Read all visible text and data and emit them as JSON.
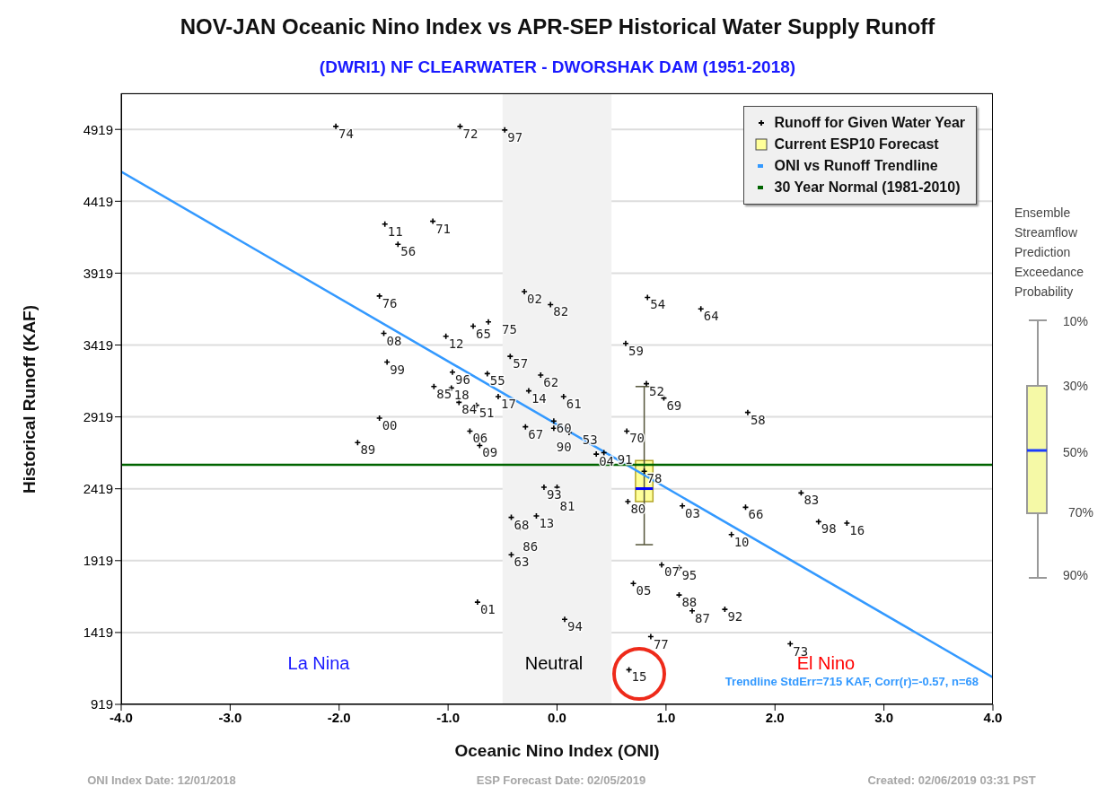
{
  "chart_data": {
    "type": "scatter",
    "title": "NOV-JAN Oceanic Nino Index vs APR-SEP Historical Water Supply Runoff",
    "subtitle": "(DWRI1) NF CLEARWATER - DWORSHAK DAM (1951-2018)",
    "xlabel": "Oceanic Nino Index (ONI)",
    "ylabel": "Historical Runoff (KAF)",
    "xlim": [
      -4,
      4
    ],
    "xticks": [
      {
        "value": -4,
        "label": "-4.0"
      },
      {
        "value": -3,
        "label": "-3.0"
      },
      {
        "value": -2,
        "label": "-2.0"
      },
      {
        "value": -1,
        "label": "-1.0"
      },
      {
        "value": 0,
        "label": "0.0"
      },
      {
        "value": 1,
        "label": "1.0"
      },
      {
        "value": 2,
        "label": "2.0"
      },
      {
        "value": 3,
        "label": "3.0"
      },
      {
        "value": 4,
        "label": "4.0"
      }
    ],
    "ylim": [
      919,
      5170
    ],
    "yticks": [
      919,
      1419,
      1919,
      2419,
      2919,
      3419,
      3919,
      4419,
      4919
    ],
    "grid": "y",
    "legend": "top right",
    "bands": [
      {
        "axis": "x",
        "from": -0.5,
        "to": 0.5,
        "color": "#f2f2f2"
      }
    ],
    "series": [
      {
        "name": "Runoff for Given Water Year",
        "color": "#000000",
        "marker": "cross",
        "x": [
          -2.03,
          -0.89,
          -0.48,
          -1.58,
          -1.14,
          -1.46,
          -1.63,
          -0.3,
          -0.06,
          0.83,
          -1.59,
          -1.02,
          -0.77,
          -0.63,
          0.63,
          -1.56,
          -0.43,
          -0.96,
          -0.64,
          -0.15,
          -1.13,
          -0.97,
          -0.54,
          -0.26,
          0.06,
          0.82,
          0.98,
          -0.9,
          -0.74,
          -1.63,
          -1.83,
          -0.8,
          -0.71,
          -0.29,
          -0.03,
          -0.03,
          0.11,
          0.36,
          0.43,
          0.64,
          0.8,
          -0.12,
          0.0,
          0.65,
          -0.42,
          -0.19,
          -0.34,
          -0.42,
          -0.73,
          0.07,
          0.86,
          0.66,
          0.7,
          0.96,
          1.32,
          1.75,
          2.24,
          1.15,
          1.73,
          2.4,
          2.66,
          1.6,
          1.12,
          1.12,
          1.24,
          1.54,
          2.14
        ],
        "values": [
          4940,
          4940,
          4915,
          4260,
          4280,
          4120,
          3760,
          3790,
          3700,
          3750,
          3500,
          3480,
          3550,
          3580,
          3430,
          3300,
          3340,
          3230,
          3220,
          3210,
          3130,
          3120,
          3060,
          3100,
          3060,
          3150,
          3050,
          3020,
          3000,
          2910,
          2740,
          2820,
          2720,
          2850,
          2890,
          2840,
          2810,
          2660,
          2670,
          2820,
          2540,
          2430,
          2430,
          2330,
          2220,
          2230,
          2150,
          1960,
          1630,
          1510,
          1390,
          1160,
          1760,
          1890,
          3670,
          2950,
          2390,
          2300,
          2290,
          2190,
          2180,
          2100,
          1870,
          1680,
          1570,
          1580,
          1340
        ]
      },
      {
        "type": "box",
        "name": "Current ESP10 Forecast",
        "color": "#ffff99",
        "x": [
          0.8
        ],
        "boxes": [
          {
            "low": 2030,
            "q1": 2330,
            "median": 2420,
            "q3": 2615,
            "high": 3130
          }
        ]
      },
      {
        "type": "line",
        "name": "ONI vs Runoff Trendline",
        "color": "#3399ff",
        "x": [
          -4,
          4
        ],
        "values": [
          4625,
          1107
        ]
      },
      {
        "type": "line",
        "name": "30 Year Normal (1981-2010)",
        "color": "#006400",
        "x": [
          -4,
          4
        ],
        "values": [
          2585,
          2585
        ]
      }
    ],
    "annotations": [
      "La Nina",
      "Neutral",
      "El Nino",
      "Trendline StdErr=715 KAF, Corr(r)=-0.57, n=68",
      "ONI Index Date: 12/01/2018",
      "ESP Forecast Date: 02/05/2019",
      "Created: 02/06/2019 03:31 PST",
      "Ensemble Streamflow Prediction Exceedance Probability",
      "10%",
      "30%",
      "50%",
      "70%",
      "90%",
      {
        "text": "74",
        "x": -2.03,
        "y": 4940
      },
      {
        "text": "72",
        "x": -0.89,
        "y": 4940
      },
      {
        "text": "97",
        "x": -0.48,
        "y": 4915
      },
      {
        "text": "11",
        "x": -1.58,
        "y": 4260
      },
      {
        "text": "71",
        "x": -1.14,
        "y": 4280
      },
      {
        "text": "56",
        "x": -1.46,
        "y": 4120
      },
      {
        "text": "76",
        "x": -1.63,
        "y": 3760
      },
      {
        "text": "02",
        "x": -0.3,
        "y": 3790
      },
      {
        "text": "82",
        "x": -0.06,
        "y": 3700
      },
      {
        "text": "54",
        "x": 0.83,
        "y": 3750
      },
      {
        "text": "08",
        "x": -1.59,
        "y": 3500
      },
      {
        "text": "12",
        "x": -1.02,
        "y": 3480
      },
      {
        "text": "65",
        "x": -0.77,
        "y": 3550
      },
      {
        "text": "75",
        "x": -0.63,
        "y": 3580
      },
      {
        "text": "59",
        "x": 0.63,
        "y": 3430
      },
      {
        "text": "99",
        "x": -1.56,
        "y": 3300
      },
      {
        "text": "57",
        "x": -0.43,
        "y": 3340
      },
      {
        "text": "96",
        "x": -0.96,
        "y": 3230
      },
      {
        "text": "55",
        "x": -0.64,
        "y": 3220
      },
      {
        "text": "62",
        "x": -0.15,
        "y": 3210
      },
      {
        "text": "85",
        "x": -1.13,
        "y": 3130
      },
      {
        "text": "18",
        "x": -0.97,
        "y": 3120
      },
      {
        "text": "17",
        "x": -0.54,
        "y": 3060
      },
      {
        "text": "14",
        "x": -0.26,
        "y": 3100
      },
      {
        "text": "61",
        "x": 0.06,
        "y": 3060
      },
      {
        "text": "52",
        "x": 0.82,
        "y": 3150
      },
      {
        "text": "69",
        "x": 0.98,
        "y": 3050
      },
      {
        "text": "84",
        "x": -0.9,
        "y": 3020
      },
      {
        "text": "51",
        "x": -0.74,
        "y": 3000
      },
      {
        "text": "00",
        "x": -1.63,
        "y": 2910
      },
      {
        "text": "89",
        "x": -1.83,
        "y": 2740
      },
      {
        "text": "06",
        "x": -0.8,
        "y": 2820
      },
      {
        "text": "09",
        "x": -0.71,
        "y": 2720
      },
      {
        "text": "67",
        "x": -0.29,
        "y": 2850
      },
      {
        "text": "60",
        "x": -0.03,
        "y": 2890
      },
      {
        "text": "90",
        "x": -0.03,
        "y": 2840
      },
      {
        "text": "53",
        "x": 0.11,
        "y": 2810
      },
      {
        "text": "04",
        "x": 0.36,
        "y": 2660
      },
      {
        "text": "91",
        "x": 0.43,
        "y": 2670
      },
      {
        "text": "70",
        "x": 0.64,
        "y": 2820
      },
      {
        "text": "78",
        "x": 0.8,
        "y": 2540
      },
      {
        "text": "93",
        "x": -0.12,
        "y": 2430
      },
      {
        "text": "81",
        "x": 0.0,
        "y": 2430
      },
      {
        "text": "80",
        "x": 0.65,
        "y": 2330
      },
      {
        "text": "68",
        "x": -0.42,
        "y": 2220
      },
      {
        "text": "13",
        "x": -0.19,
        "y": 2230
      },
      {
        "text": "86",
        "x": -0.34,
        "y": 2150
      },
      {
        "text": "63",
        "x": -0.42,
        "y": 1960
      },
      {
        "text": "01",
        "x": -0.73,
        "y": 1630
      },
      {
        "text": "94",
        "x": 0.07,
        "y": 1510
      },
      {
        "text": "77",
        "x": 0.86,
        "y": 1390
      },
      {
        "text": "15",
        "x": 0.66,
        "y": 1160
      },
      {
        "text": "05",
        "x": 0.7,
        "y": 1760
      },
      {
        "text": "07",
        "x": 0.96,
        "y": 1890
      },
      {
        "text": "64",
        "x": 1.32,
        "y": 3670
      },
      {
        "text": "58",
        "x": 1.75,
        "y": 2950
      },
      {
        "text": "83",
        "x": 2.24,
        "y": 2390
      },
      {
        "text": "03",
        "x": 1.15,
        "y": 2300
      },
      {
        "text": "66",
        "x": 1.73,
        "y": 2290
      },
      {
        "text": "98",
        "x": 2.4,
        "y": 2190
      },
      {
        "text": "16",
        "x": 2.66,
        "y": 2180
      },
      {
        "text": "10",
        "x": 1.6,
        "y": 2100
      },
      {
        "text": "95",
        "x": 1.12,
        "y": 1870
      },
      {
        "text": "88",
        "x": 1.12,
        "y": 1680
      },
      {
        "text": "87",
        "x": 1.24,
        "y": 1570
      },
      {
        "text": "92",
        "x": 1.54,
        "y": 1580
      },
      {
        "text": "73",
        "x": 2.14,
        "y": 1340
      }
    ]
  }
}
